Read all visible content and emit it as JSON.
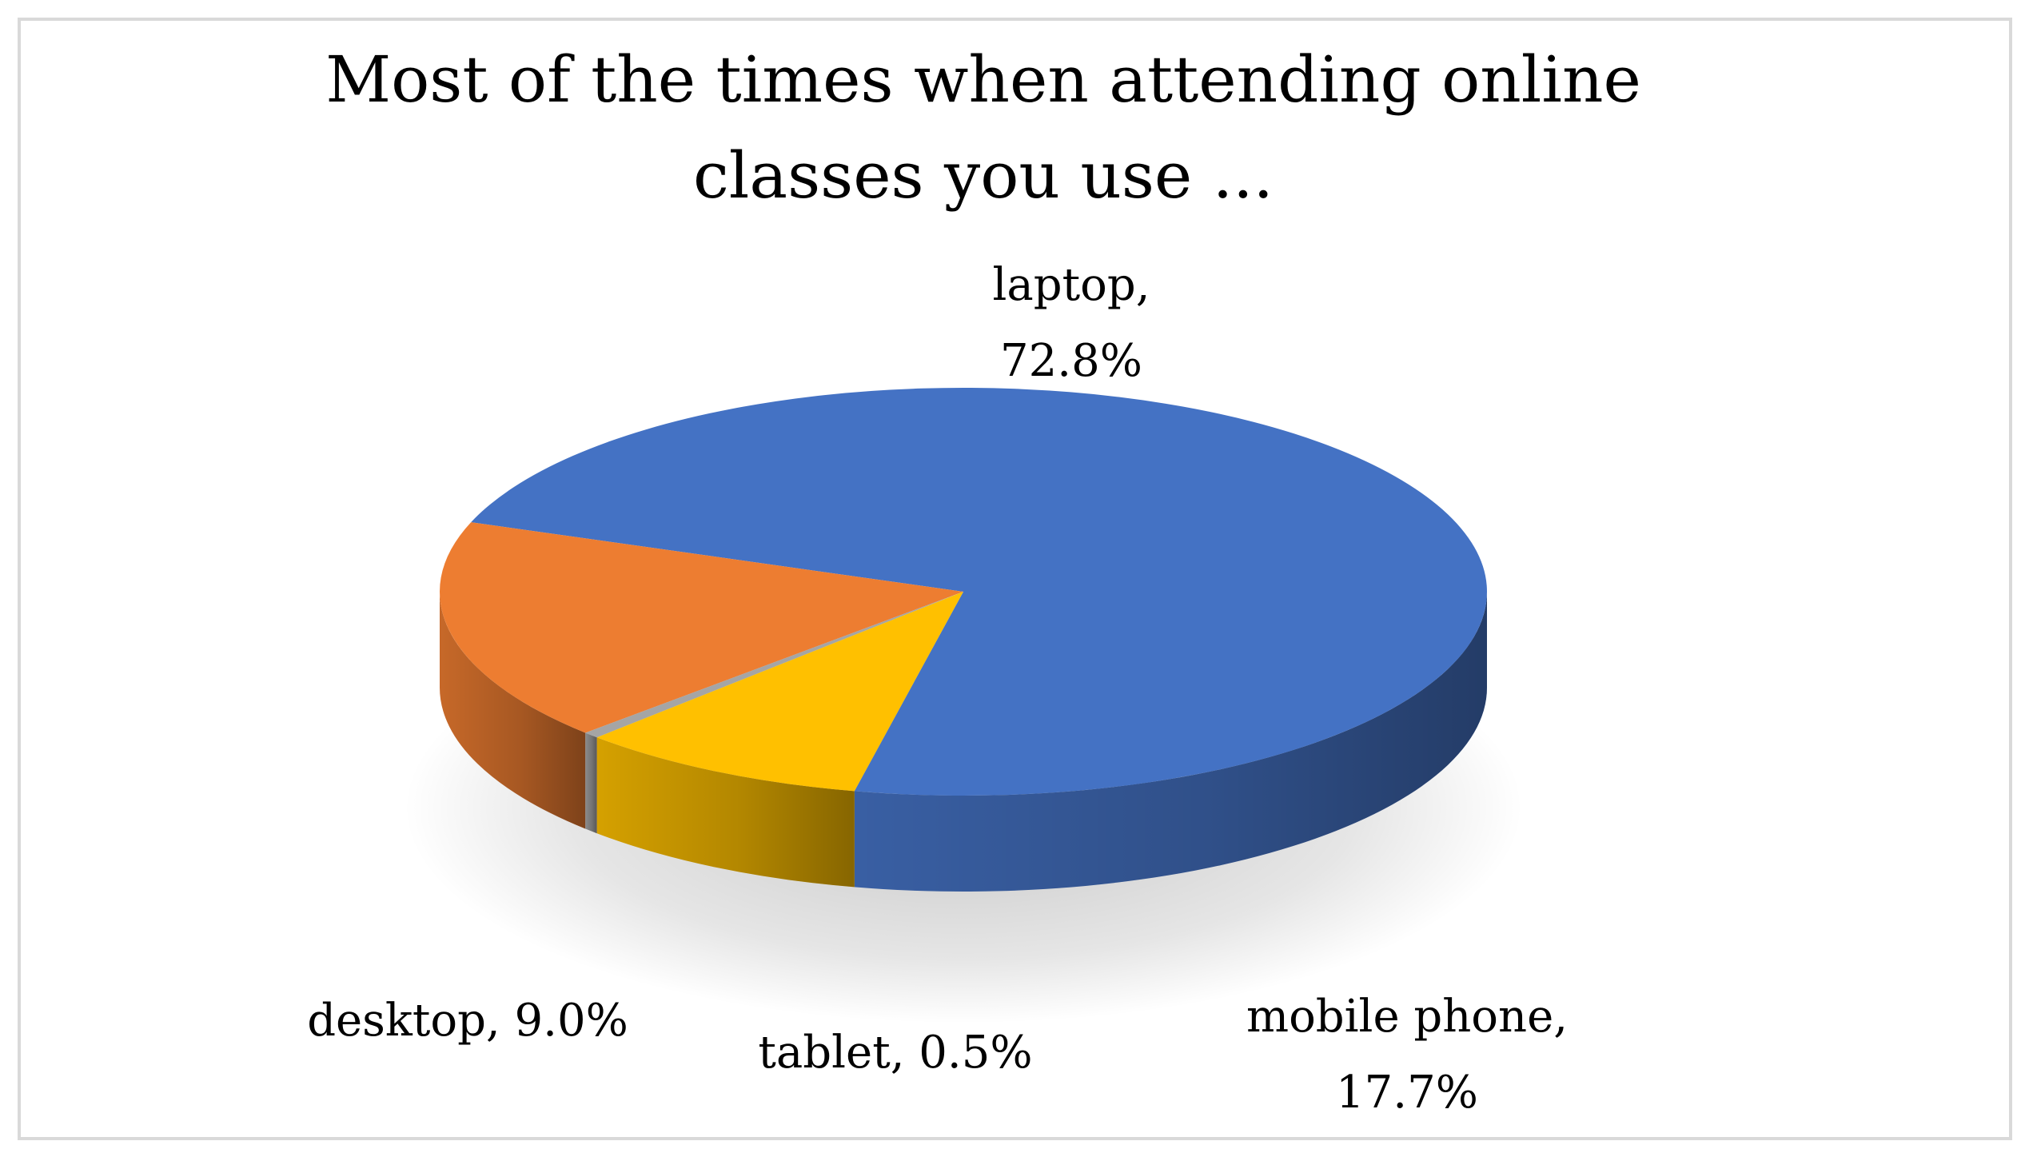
{
  "chart_data": {
    "type": "pie",
    "title": "Most of the times when attending online classes you use ...",
    "slices": [
      {
        "label": "laptop",
        "value": 72.8,
        "value_label": "72.8%",
        "color": "#4472C4",
        "label_position": "top"
      },
      {
        "label": "mobile phone",
        "value": 17.7,
        "value_label": "17.7%",
        "color": "#ED7D31",
        "label_position": "bottom-right"
      },
      {
        "label": "tablet",
        "value": 0.5,
        "value_label": "0.5%",
        "color": "#A5A5A5",
        "label_position": "bottom"
      },
      {
        "label": "desktop",
        "value": 9.0,
        "value_label": "9.0%",
        "color": "#FFC000",
        "label_position": "bottom-left"
      }
    ],
    "legend": "none",
    "style": "3d"
  }
}
